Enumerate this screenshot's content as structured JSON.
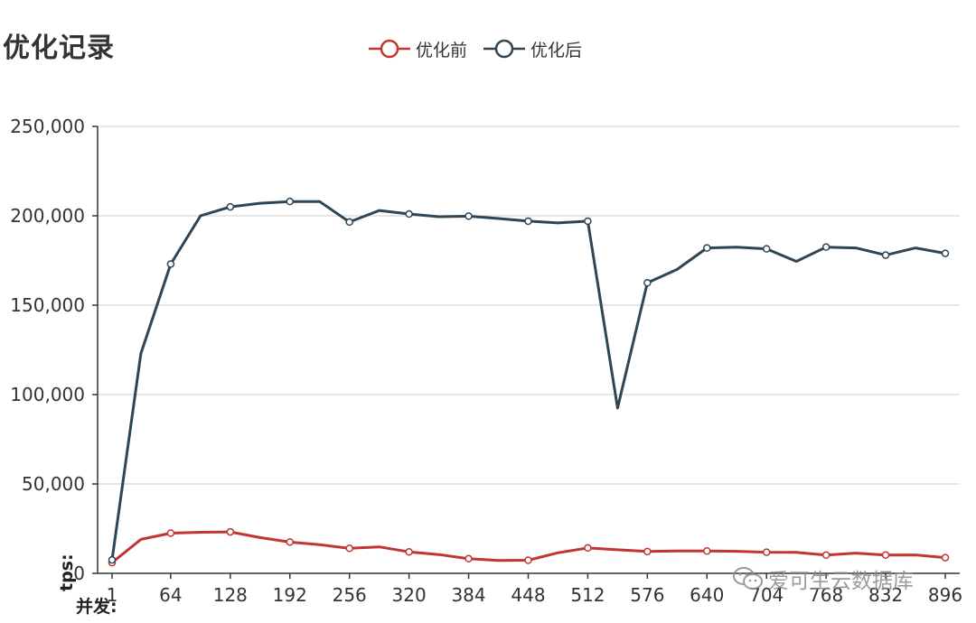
{
  "title": "优化记录",
  "legend": [
    {
      "name": "优化前",
      "color": "#c23531"
    },
    {
      "name": "优化后",
      "color": "#2f4554"
    }
  ],
  "watermark": "爱可生云数据库",
  "chart_data": {
    "type": "line",
    "title": "优化记录",
    "xlabel": "并发:",
    "ylabel": "tps:",
    "x_ticks": [
      "1",
      "64",
      "128",
      "192",
      "256",
      "320",
      "384",
      "448",
      "512",
      "576",
      "640",
      "704",
      "768",
      "832",
      "896"
    ],
    "x": [
      1,
      32,
      64,
      96,
      128,
      160,
      192,
      224,
      256,
      288,
      320,
      352,
      384,
      416,
      448,
      480,
      512,
      544,
      576,
      608,
      640,
      672,
      704,
      736,
      768,
      800,
      832,
      864,
      896
    ],
    "xlim": [
      1,
      896
    ],
    "ylim": [
      0,
      250000
    ],
    "y_ticks": [
      "0",
      "50,000",
      "100,000",
      "150,000",
      "200,000",
      "250,000"
    ],
    "grid": true,
    "legend_position": "top-center",
    "series": [
      {
        "name": "优化前",
        "color": "#c23531",
        "values": [
          6000,
          19000,
          22500,
          23000,
          23200,
          20000,
          17500,
          16000,
          14000,
          14800,
          12000,
          10500,
          8200,
          7200,
          7300,
          11500,
          14200,
          13200,
          12200,
          12500,
          12500,
          12300,
          11800,
          11700,
          10200,
          11300,
          10200,
          10300,
          8800
        ],
        "markers": [
          true,
          false,
          true,
          false,
          true,
          false,
          true,
          false,
          true,
          false,
          true,
          false,
          true,
          false,
          true,
          false,
          true,
          false,
          true,
          false,
          true,
          false,
          true,
          false,
          true,
          false,
          true,
          false,
          true
        ]
      },
      {
        "name": "优化后",
        "color": "#2f4554",
        "values": [
          7500,
          123000,
          173000,
          200000,
          205000,
          207000,
          208000,
          208000,
          196500,
          203000,
          201000,
          199500,
          199800,
          198500,
          197000,
          196000,
          197000,
          92500,
          162500,
          170000,
          182000,
          182500,
          181500,
          174500,
          182500,
          182000,
          178000,
          182000,
          179000
        ],
        "markers": [
          true,
          false,
          true,
          false,
          true,
          false,
          true,
          false,
          true,
          false,
          true,
          false,
          true,
          false,
          true,
          false,
          true,
          false,
          true,
          false,
          true,
          false,
          true,
          false,
          true,
          false,
          true,
          false,
          true
        ]
      }
    ]
  }
}
